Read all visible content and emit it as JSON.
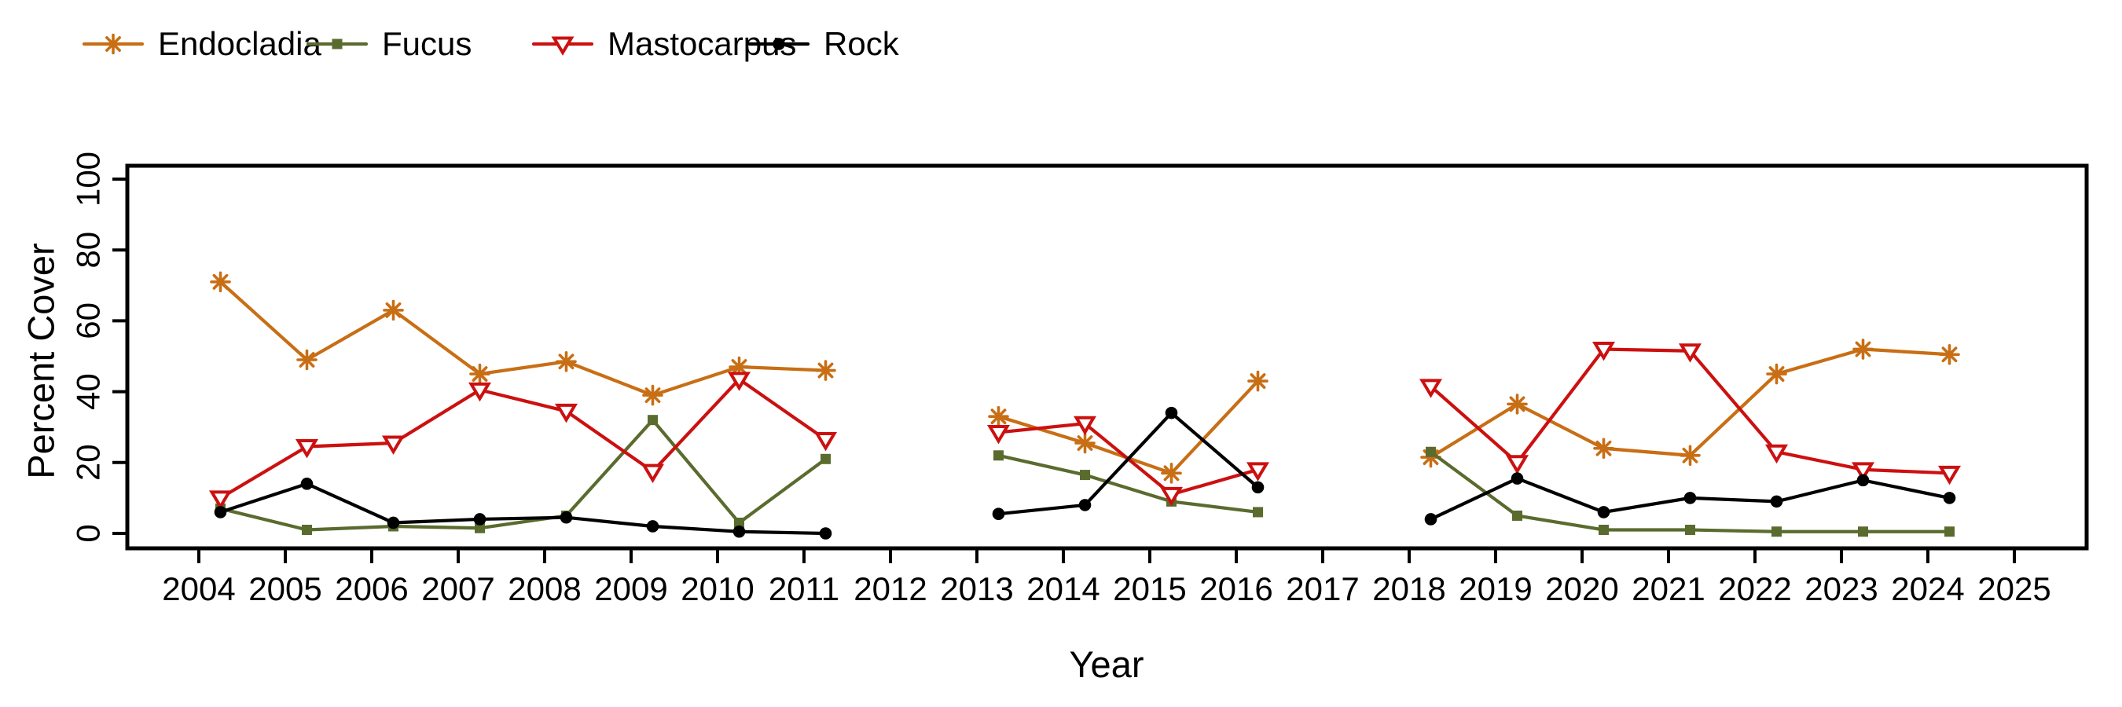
{
  "chart_data": {
    "type": "line",
    "title": "",
    "xlabel": "Year",
    "ylabel": "Percent Cover",
    "x_ticks": [
      2004,
      2005,
      2006,
      2007,
      2008,
      2009,
      2010,
      2011,
      2012,
      2013,
      2014,
      2015,
      2016,
      2017,
      2018,
      2019,
      2020,
      2021,
      2022,
      2023,
      2024,
      2025
    ],
    "y_ticks": [
      0,
      20,
      40,
      60,
      80,
      100
    ],
    "xlim": [
      2003.16,
      2025.84
    ],
    "ylim": [
      -4.2,
      104.2
    ],
    "grid": "off",
    "legend_position": "top-left",
    "point_offset": 0.25,
    "series": [
      {
        "name": "Endocladia",
        "color": "#c86e14",
        "marker": "asterisk",
        "segments": [
          {
            "years": [
              2004,
              2005,
              2006,
              2007,
              2008,
              2009,
              2010,
              2011
            ],
            "values": [
              71,
              49,
              63,
              45,
              48.5,
              39,
              47,
              46
            ]
          },
          {
            "years": [
              2013,
              2014,
              2015,
              2016
            ],
            "values": [
              33,
              25.5,
              17,
              43
            ]
          },
          {
            "years": [
              2018,
              2019,
              2020,
              2021,
              2022,
              2023,
              2024
            ],
            "values": [
              21.5,
              36.5,
              24,
              22,
              45,
              52,
              50.5
            ]
          }
        ]
      },
      {
        "name": "Fucus",
        "color": "#5a6b2e",
        "marker": "filled-square",
        "segments": [
          {
            "years": [
              2004,
              2005,
              2006,
              2007,
              2008,
              2009,
              2010,
              2011
            ],
            "values": [
              7,
              1,
              2,
              1.5,
              5,
              32,
              3,
              21
            ]
          },
          {
            "years": [
              2013,
              2014,
              2015,
              2016
            ],
            "values": [
              22,
              16.5,
              9,
              6
            ]
          },
          {
            "years": [
              2018,
              2019,
              2020,
              2021,
              2022,
              2023,
              2024
            ],
            "values": [
              23,
              5,
              1,
              1,
              0.5,
              0.5,
              0.5
            ]
          }
        ]
      },
      {
        "name": "Mastocarpus",
        "color": "#cc1010",
        "marker": "open-triangle-down",
        "segments": [
          {
            "years": [
              2004,
              2005,
              2006,
              2007,
              2008,
              2009,
              2010,
              2011
            ],
            "values": [
              10,
              24.5,
              25.5,
              40.5,
              34.5,
              17.5,
              43.5,
              26.5
            ]
          },
          {
            "years": [
              2013,
              2014,
              2015,
              2016
            ],
            "values": [
              28.5,
              31,
              11,
              18
            ]
          },
          {
            "years": [
              2018,
              2019,
              2020,
              2021,
              2022,
              2023,
              2024
            ],
            "values": [
              41.5,
              20,
              52,
              51.5,
              23,
              18,
              17
            ]
          }
        ]
      },
      {
        "name": "Rock",
        "color": "#000000",
        "marker": "filled-circle",
        "segments": [
          {
            "years": [
              2004,
              2005,
              2006,
              2007,
              2008,
              2009,
              2010,
              2011
            ],
            "values": [
              6,
              14,
              3,
              4,
              4.5,
              2,
              0.5,
              0
            ]
          },
          {
            "years": [
              2013,
              2014,
              2015,
              2016
            ],
            "values": [
              5.5,
              8,
              34,
              13
            ]
          },
          {
            "years": [
              2018,
              2019,
              2020,
              2021,
              2022,
              2023,
              2024
            ],
            "values": [
              4,
              15.5,
              6,
              10,
              9,
              15,
              10
            ]
          }
        ]
      }
    ]
  }
}
